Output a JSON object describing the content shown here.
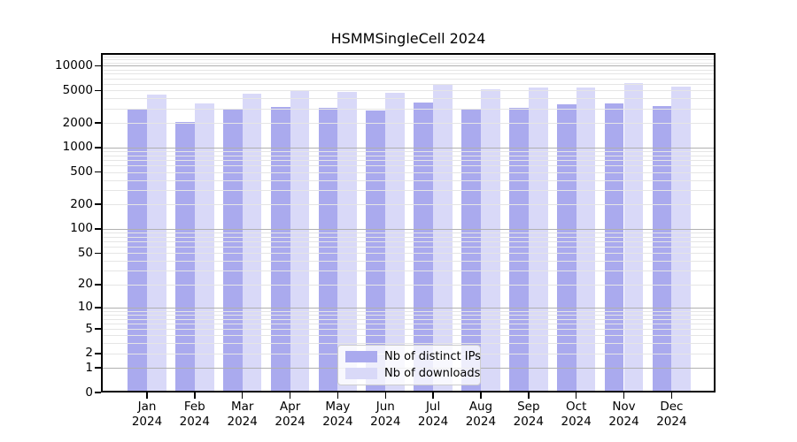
{
  "title": "HSMMSingleCell 2024",
  "legend": {
    "items": [
      {
        "label": "Nb of distinct IPs",
        "color": "#aaaaee"
      },
      {
        "label": "Nb of downloads",
        "color": "#d9d9f8"
      }
    ]
  },
  "y_axis": {
    "scale": "log10(1+x)",
    "ticks": [
      {
        "value": 10000,
        "label": "10000"
      },
      {
        "value": 5000,
        "label": "5000"
      },
      {
        "value": 2000,
        "label": "2000"
      },
      {
        "value": 1000,
        "label": "1000"
      },
      {
        "value": 500,
        "label": "500"
      },
      {
        "value": 200,
        "label": "200"
      },
      {
        "value": 100,
        "label": "100"
      },
      {
        "value": 50,
        "label": "50"
      },
      {
        "value": 20,
        "label": "20"
      },
      {
        "value": 10,
        "label": "10"
      },
      {
        "value": 5,
        "label": "5"
      },
      {
        "value": 2,
        "label": "2"
      },
      {
        "value": 1,
        "label": "1"
      },
      {
        "value": 0,
        "label": "0"
      }
    ]
  },
  "chart_data": {
    "type": "bar",
    "title": "HSMMSingleCell 2024",
    "xlabel": "",
    "ylabel": "",
    "yscale": "log10(1+x)",
    "ylim": [
      0,
      14300
    ],
    "grid": true,
    "legend_position": "lower center",
    "categories": [
      "Jan 2024",
      "Feb 2024",
      "Mar 2024",
      "Apr 2024",
      "May 2024",
      "Jun 2024",
      "Jul 2024",
      "Aug 2024",
      "Sep 2024",
      "Oct 2024",
      "Nov 2024",
      "Dec 2024"
    ],
    "series": [
      {
        "name": "Nb of distinct IPs",
        "color": "#aaaaee",
        "values": [
          2900,
          2030,
          2950,
          3150,
          3040,
          2870,
          3570,
          2950,
          3080,
          3370,
          3480,
          3210
        ]
      },
      {
        "name": "Nb of downloads",
        "color": "#d9d9f8",
        "values": [
          4470,
          3480,
          4500,
          5000,
          4750,
          4630,
          5990,
          5150,
          5370,
          5460,
          6140,
          5560
        ]
      }
    ],
    "gridline_colors": {
      "major": "#b0b0b0",
      "minor": "#e5e5e5"
    }
  }
}
